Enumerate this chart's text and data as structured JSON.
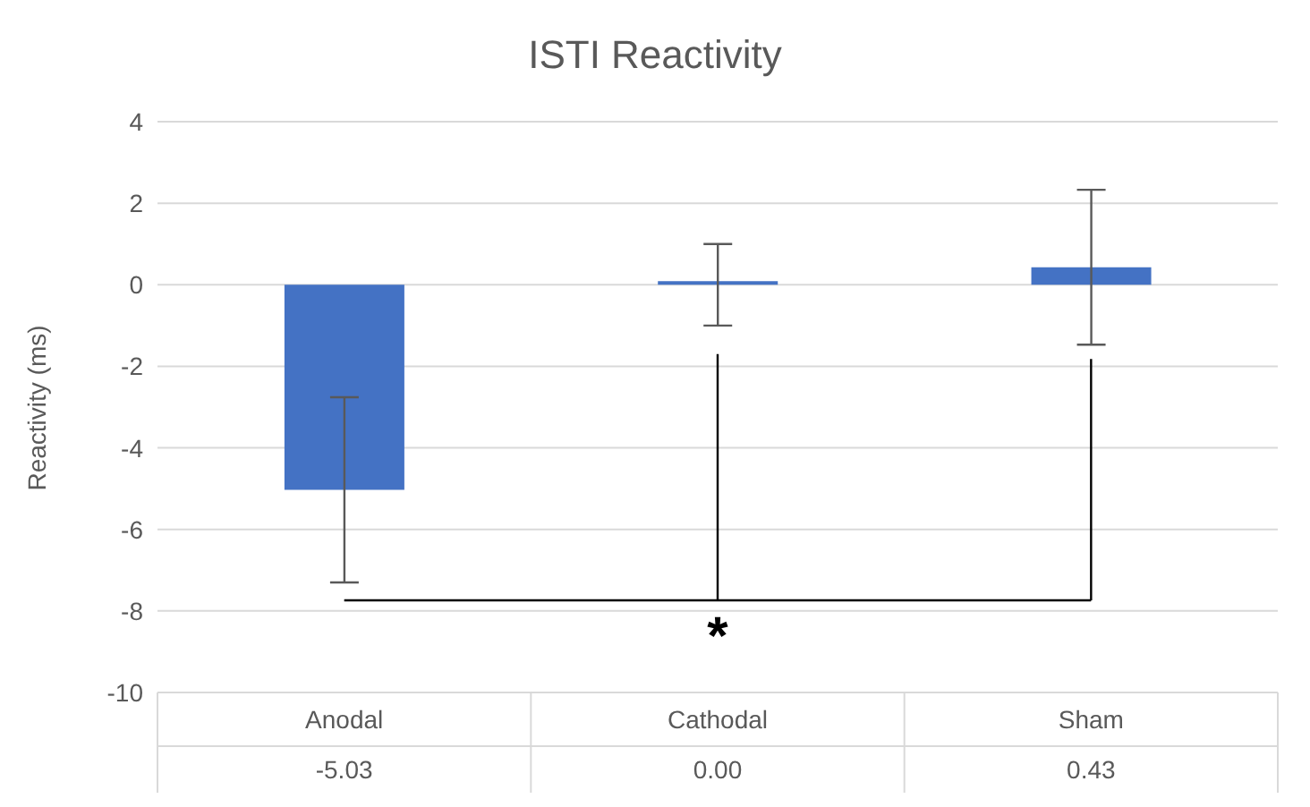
{
  "chart_data": {
    "type": "bar",
    "title": "ISTI Reactivity",
    "ylabel": "Reactivity (ms)",
    "categories": [
      "Anodal",
      "Cathodal",
      "Sham"
    ],
    "values": [
      -5.03,
      0,
      0.43
    ],
    "value_labels": [
      "-5.03",
      "0.00",
      "0.43"
    ],
    "errors": [
      2.27,
      1.0,
      1.9
    ],
    "color": "#4472c4",
    "ylim": [
      -10,
      4
    ],
    "yticks": [
      -10,
      -8,
      -6,
      -4,
      -2,
      0,
      2,
      4
    ],
    "grid": "y",
    "legend": false,
    "annotations": [
      "*"
    ]
  }
}
